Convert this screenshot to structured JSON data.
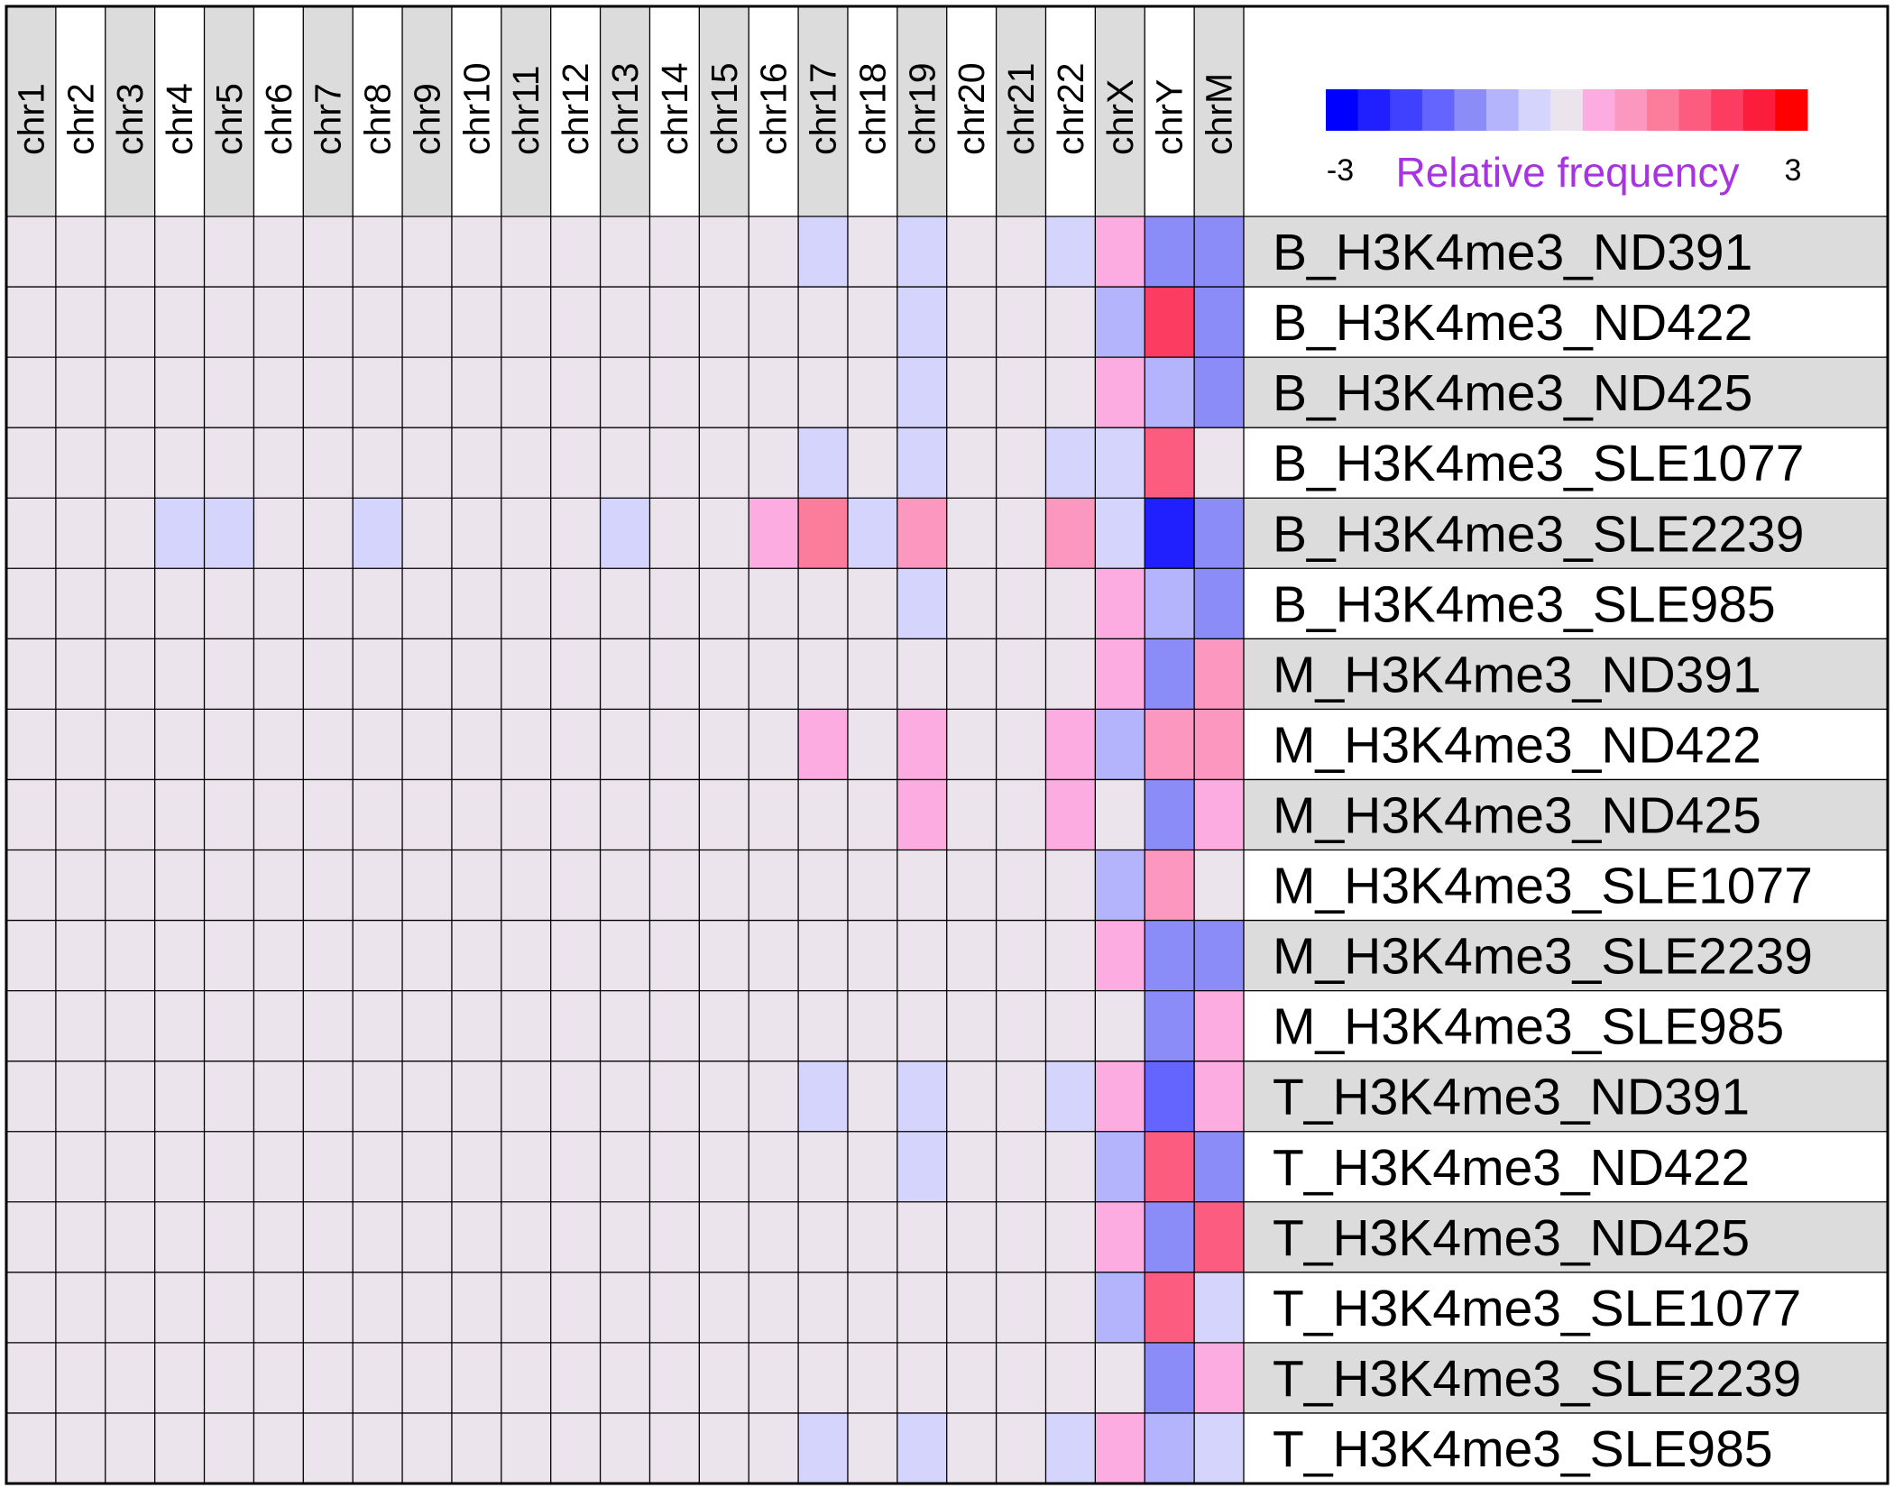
{
  "chart_data": {
    "type": "heatmap",
    "legend": {
      "title": "Relative frequency",
      "min_label": "-3",
      "max_label": "3",
      "range": [
        -3,
        3
      ],
      "title_color": "#a833e0",
      "colors": [
        "#0000ff",
        "#2020ff",
        "#4040ff",
        "#6464ff",
        "#8c8cf8",
        "#b4b4fc",
        "#d4d4fc",
        "#ece4ec",
        "#fcace0",
        "#fc98c0",
        "#fc7c9c",
        "#fc5c80",
        "#fc3c60",
        "#fc1c3c",
        "#ff0000"
      ]
    },
    "columns": [
      "chr1",
      "chr2",
      "chr3",
      "chr4",
      "chr5",
      "chr6",
      "chr7",
      "chr8",
      "chr9",
      "chr10",
      "chr11",
      "chr12",
      "chr13",
      "chr14",
      "chr15",
      "chr16",
      "chr17",
      "chr18",
      "chr19",
      "chr20",
      "chr21",
      "chr22",
      "chrX",
      "chrY",
      "chrM"
    ],
    "rows": [
      "B_H3K4me3_ND391",
      "B_H3K4me3_ND422",
      "B_H3K4me3_ND425",
      "B_H3K4me3_SLE1077",
      "B_H3K4me3_SLE2239",
      "B_H3K4me3_SLE985",
      "M_H3K4me3_ND391",
      "M_H3K4me3_ND422",
      "M_H3K4me3_ND425",
      "M_H3K4me3_SLE1077",
      "M_H3K4me3_SLE2239",
      "M_H3K4me3_SLE985",
      "T_H3K4me3_ND391",
      "T_H3K4me3_ND422",
      "T_H3K4me3_ND425",
      "T_H3K4me3_SLE1077",
      "T_H3K4me3_SLE2239",
      "T_H3K4me3_SLE985"
    ],
    "values": [
      [
        0,
        0,
        0,
        0,
        0,
        0,
        0,
        0,
        0,
        0,
        0,
        0,
        0,
        0,
        0,
        0,
        -0.4,
        0,
        -0.4,
        0,
        0,
        -0.4,
        0.4,
        -1.2,
        -1.2
      ],
      [
        0,
        0,
        0,
        0,
        0,
        0,
        0,
        0,
        0,
        0,
        0,
        0,
        0,
        0,
        0,
        0,
        0,
        0,
        -0.4,
        0,
        0,
        0,
        -0.8,
        2,
        -1.2
      ],
      [
        0,
        0,
        0,
        0,
        0,
        0,
        0,
        0,
        0,
        0,
        0,
        0,
        0,
        0,
        0,
        0,
        0,
        0,
        -0.4,
        0,
        0,
        0,
        0.4,
        -0.8,
        -1.2
      ],
      [
        0,
        0,
        0,
        0,
        0,
        0,
        0,
        0,
        0,
        0,
        0,
        0,
        0,
        0,
        0,
        0,
        -0.4,
        0,
        -0.4,
        0,
        0,
        -0.4,
        -0.4,
        1.6,
        0
      ],
      [
        0,
        0,
        0,
        -0.4,
        -0.4,
        0,
        0,
        -0.4,
        0,
        0,
        0,
        0,
        -0.4,
        0,
        0,
        0.4,
        1.2,
        -0.4,
        0.8,
        0,
        0,
        0.8,
        -0.4,
        -2.4,
        -1.2
      ],
      [
        0,
        0,
        0,
        0,
        0,
        0,
        0,
        0,
        0,
        0,
        0,
        0,
        0,
        0,
        0,
        0,
        0,
        0,
        -0.4,
        0,
        0,
        0,
        0.4,
        -0.8,
        -1.2
      ],
      [
        0,
        0,
        0,
        0,
        0,
        0,
        0,
        0,
        0,
        0,
        0,
        0,
        0,
        0,
        0,
        0,
        0,
        0,
        0,
        0,
        0,
        0,
        0.4,
        -1.2,
        0.8
      ],
      [
        0,
        0,
        0,
        0,
        0,
        0,
        0,
        0,
        0,
        0,
        0,
        0,
        0,
        0,
        0,
        0,
        0.4,
        0,
        0.4,
        0,
        0,
        0.4,
        -0.8,
        0.8,
        0.8
      ],
      [
        0,
        0,
        0,
        0,
        0,
        0,
        0,
        0,
        0,
        0,
        0,
        0,
        0,
        0,
        0,
        0,
        0,
        0,
        0.4,
        0,
        0,
        0.4,
        0,
        -1.2,
        0.4
      ],
      [
        0,
        0,
        0,
        0,
        0,
        0,
        0,
        0,
        0,
        0,
        0,
        0,
        0,
        0,
        0,
        0,
        0,
        0,
        0,
        0,
        0,
        0,
        -0.8,
        0.8,
        0
      ],
      [
        0,
        0,
        0,
        0,
        0,
        0,
        0,
        0,
        0,
        0,
        0,
        0,
        0,
        0,
        0,
        0,
        0,
        0,
        0,
        0,
        0,
        0,
        0.4,
        -1.2,
        -1.2
      ],
      [
        0,
        0,
        0,
        0,
        0,
        0,
        0,
        0,
        0,
        0,
        0,
        0,
        0,
        0,
        0,
        0,
        0,
        0,
        0,
        0,
        0,
        0,
        0,
        -1.2,
        0.4
      ],
      [
        0,
        0,
        0,
        0,
        0,
        0,
        0,
        0,
        0,
        0,
        0,
        0,
        0,
        0,
        0,
        0,
        -0.4,
        0,
        -0.4,
        0,
        0,
        -0.4,
        0.4,
        -1.6,
        0.4
      ],
      [
        0,
        0,
        0,
        0,
        0,
        0,
        0,
        0,
        0,
        0,
        0,
        0,
        0,
        0,
        0,
        0,
        0,
        0,
        -0.4,
        0,
        0,
        0,
        -0.8,
        1.6,
        -1.2
      ],
      [
        0,
        0,
        0,
        0,
        0,
        0,
        0,
        0,
        0,
        0,
        0,
        0,
        0,
        0,
        0,
        0,
        0,
        0,
        0,
        0,
        0,
        0,
        0.4,
        -1.2,
        1.6
      ],
      [
        0,
        0,
        0,
        0,
        0,
        0,
        0,
        0,
        0,
        0,
        0,
        0,
        0,
        0,
        0,
        0,
        0,
        0,
        0,
        0,
        0,
        0,
        -0.8,
        1.6,
        -0.4
      ],
      [
        0,
        0,
        0,
        0,
        0,
        0,
        0,
        0,
        0,
        0,
        0,
        0,
        0,
        0,
        0,
        0,
        0,
        0,
        0,
        0,
        0,
        0,
        0,
        -1.2,
        0.4
      ],
      [
        0,
        0,
        0,
        0,
        0,
        0,
        0,
        0,
        0,
        0,
        0,
        0,
        0,
        0,
        0,
        0,
        -0.4,
        0,
        -0.4,
        0,
        0,
        -0.4,
        0.4,
        -0.8,
        -0.4
      ]
    ],
    "header_stripe_colors": [
      "#dcdcdc",
      "#ffffff"
    ],
    "grid": true
  }
}
